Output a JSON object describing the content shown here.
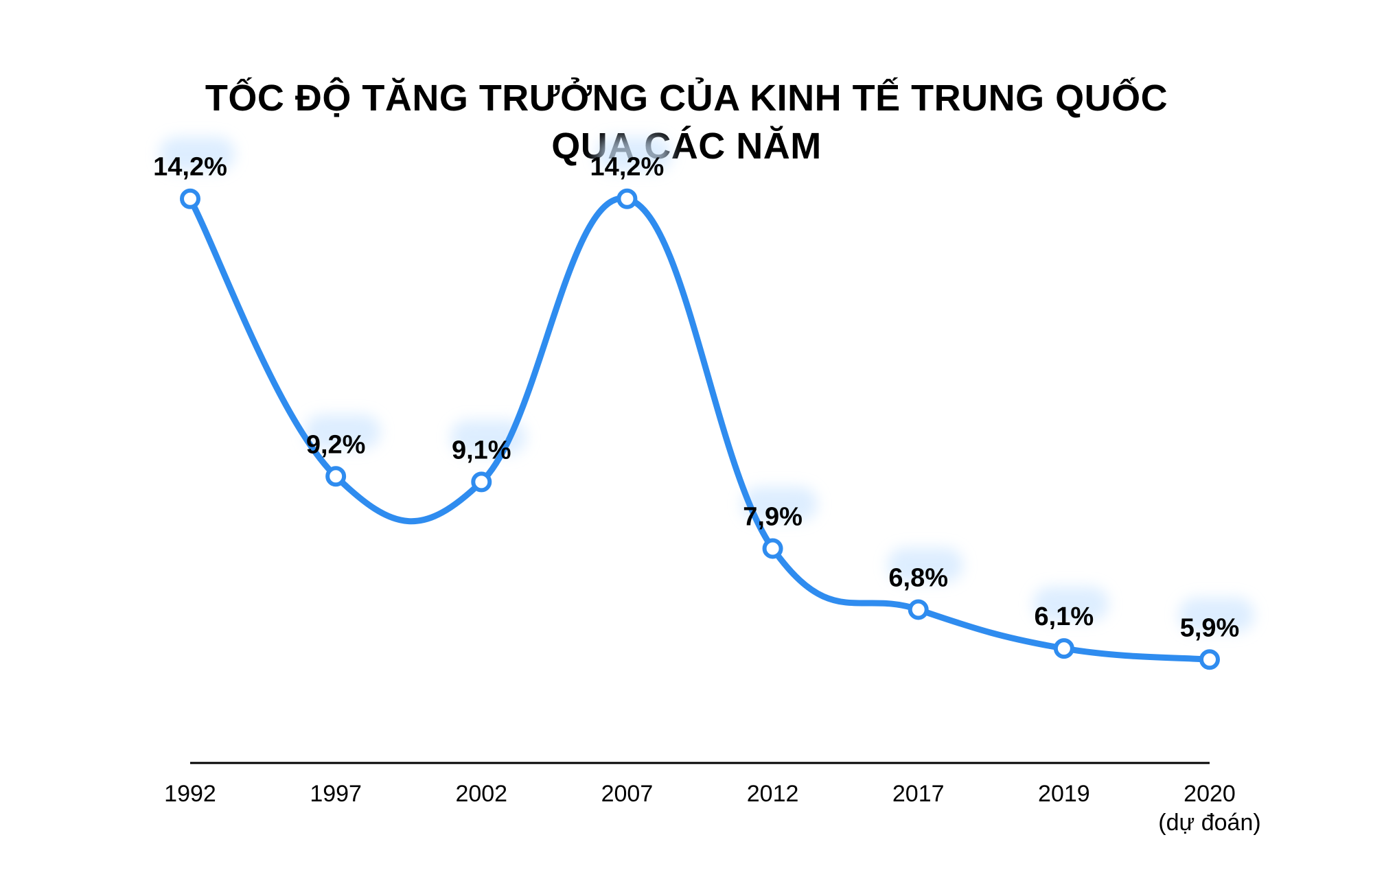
{
  "colors": {
    "line": "#2f8cef",
    "point_fill": "#ffffff",
    "label_glow": "#cfe6ff",
    "text": "#000000",
    "axis": "#000000"
  },
  "chart_data": {
    "type": "line",
    "title_line1": "TỐC ĐỘ TĂNG TRƯỞNG CỦA KINH TẾ TRUNG QUỐC",
    "title_line2": "QUA CÁC NĂM",
    "categories": [
      "1992",
      "1997",
      "2002",
      "2007",
      "2012",
      "2017",
      "2019",
      "2020"
    ],
    "category_sublabels": [
      "",
      "",
      "",
      "",
      "",
      "",
      "",
      "(dự đoán)"
    ],
    "series": [
      {
        "values": [
          14.2,
          9.2,
          9.1,
          14.2,
          7.9,
          6.8,
          6.1,
          5.9
        ],
        "labels": [
          "14,2%",
          "9,2%",
          "9,1%",
          "14,2%",
          "7,9%",
          "6,8%",
          "6,1%",
          "5,9%"
        ]
      }
    ],
    "ylim": [
      4,
      15
    ],
    "grid": false,
    "legend": "none",
    "smooth": true
  }
}
